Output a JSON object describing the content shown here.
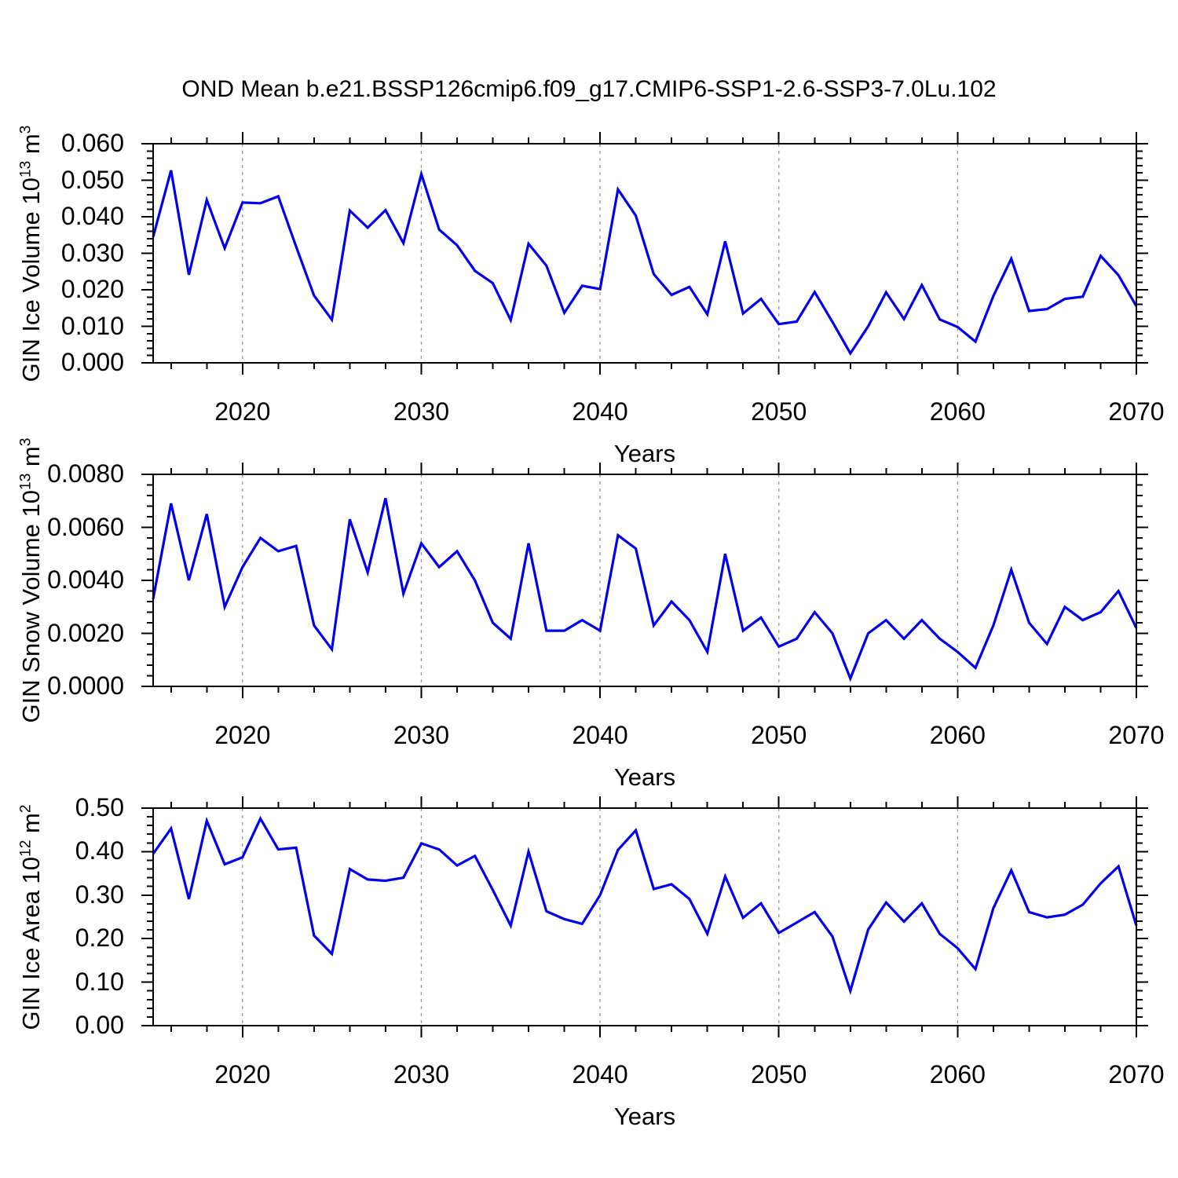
{
  "title": "OND Mean b.e21.BSSP126cmip6.f09_g17.CMIP6-SSP1-2.6-SSP3-7.0Lu.102",
  "colors": {
    "line": "#0000ee",
    "frame": "#000000",
    "grid": "#9a9a9a"
  },
  "chart_data": {
    "type": "line",
    "xlabel": "Years",
    "xlim": [
      2015,
      2070
    ],
    "x_major_ticks": [
      2020,
      2030,
      2040,
      2050,
      2060,
      2070
    ],
    "x_minor_step": 2,
    "gridline_years": [
      2020,
      2030,
      2040,
      2050,
      2060
    ],
    "grid": "vertical-dashed",
    "legend": "none",
    "x": [
      2015,
      2016,
      2017,
      2018,
      2019,
      2020,
      2021,
      2022,
      2023,
      2024,
      2025,
      2026,
      2027,
      2028,
      2029,
      2030,
      2031,
      2032,
      2033,
      2034,
      2035,
      2036,
      2037,
      2038,
      2039,
      2040,
      2041,
      2042,
      2043,
      2044,
      2045,
      2046,
      2047,
      2048,
      2049,
      2050,
      2051,
      2052,
      2053,
      2054,
      2055,
      2056,
      2057,
      2058,
      2059,
      2060,
      2061,
      2062,
      2063,
      2064,
      2065,
      2066,
      2067,
      2068,
      2069,
      2070
    ],
    "panels": [
      {
        "id": "ice-volume",
        "ylabel_plain": "GIN Ice Volume 10^13 m^3",
        "ylabel_parts": [
          [
            "GIN Ice Volume 10",
            "13"
          ],
          [
            " m",
            "3"
          ]
        ],
        "ylim": [
          0.0,
          0.06
        ],
        "ytick_labels": [
          "0.000",
          "0.010",
          "0.020",
          "0.030",
          "0.040",
          "0.050",
          "0.060"
        ],
        "y_minor_step": 0.002,
        "values": [
          0.0345,
          0.0527,
          0.0241,
          0.0446,
          0.0314,
          0.0439,
          0.0437,
          0.0456,
          0.0318,
          0.0184,
          0.0118,
          0.0417,
          0.037,
          0.0418,
          0.0328,
          0.0517,
          0.0365,
          0.0322,
          0.0252,
          0.0218,
          0.0117,
          0.0326,
          0.0266,
          0.0137,
          0.0211,
          0.0202,
          0.0475,
          0.0403,
          0.0243,
          0.0186,
          0.0208,
          0.0133,
          0.0333,
          0.0135,
          0.0175,
          0.0106,
          0.0113,
          0.0194,
          0.0112,
          0.0026,
          0.01,
          0.0193,
          0.012,
          0.0213,
          0.0119,
          0.0098,
          0.0058,
          0.0183,
          0.0285,
          0.0142,
          0.0147,
          0.0175,
          0.0181,
          0.0293,
          0.024,
          0.0155
        ]
      },
      {
        "id": "snow-volume",
        "ylabel_plain": "GIN Snow Volume 10^13 m^3",
        "ylabel_parts": [
          [
            "GIN Snow Volume 10",
            "13"
          ],
          [
            " m",
            "3"
          ]
        ],
        "ylim": [
          0.0,
          0.008
        ],
        "ytick_labels": [
          "0.0000",
          "0.0020",
          "0.0040",
          "0.0060",
          "0.0080"
        ],
        "y_minor_step": 0.0004,
        "values": [
          0.0033,
          0.0069,
          0.004,
          0.0065,
          0.003,
          0.0045,
          0.0056,
          0.0051,
          0.0053,
          0.0023,
          0.0014,
          0.0063,
          0.0043,
          0.0071,
          0.0035,
          0.0054,
          0.0045,
          0.0051,
          0.004,
          0.0024,
          0.0018,
          0.0054,
          0.0021,
          0.0021,
          0.0025,
          0.0021,
          0.0057,
          0.0052,
          0.0023,
          0.0032,
          0.0025,
          0.0013,
          0.005,
          0.0021,
          0.0026,
          0.0015,
          0.0018,
          0.0028,
          0.002,
          0.0003,
          0.002,
          0.0025,
          0.0018,
          0.0025,
          0.0018,
          0.0013,
          0.0007,
          0.0023,
          0.0044,
          0.0024,
          0.0016,
          0.003,
          0.0025,
          0.0028,
          0.0036,
          0.0022
        ]
      },
      {
        "id": "ice-area",
        "ylabel_plain": "GIN Ice Area 10^12 m^2",
        "ylabel_parts": [
          [
            "GIN Ice Area 10",
            "12"
          ],
          [
            " m",
            "2"
          ]
        ],
        "ylim": [
          0.0,
          0.5
        ],
        "ytick_labels": [
          "0.00",
          "0.10",
          "0.20",
          "0.30",
          "0.40",
          "0.50"
        ],
        "y_minor_step": 0.02,
        "values": [
          0.395,
          0.453,
          0.291,
          0.471,
          0.371,
          0.387,
          0.476,
          0.405,
          0.409,
          0.207,
          0.165,
          0.36,
          0.336,
          0.333,
          0.34,
          0.419,
          0.405,
          0.368,
          0.39,
          0.312,
          0.23,
          0.4,
          0.263,
          0.245,
          0.234,
          0.3,
          0.404,
          0.449,
          0.314,
          0.325,
          0.291,
          0.211,
          0.343,
          0.248,
          0.281,
          0.213,
          0.237,
          0.261,
          0.205,
          0.08,
          0.221,
          0.283,
          0.239,
          0.281,
          0.211,
          0.178,
          0.13,
          0.27,
          0.357,
          0.261,
          0.249,
          0.255,
          0.278,
          0.327,
          0.366,
          0.23
        ]
      }
    ]
  }
}
